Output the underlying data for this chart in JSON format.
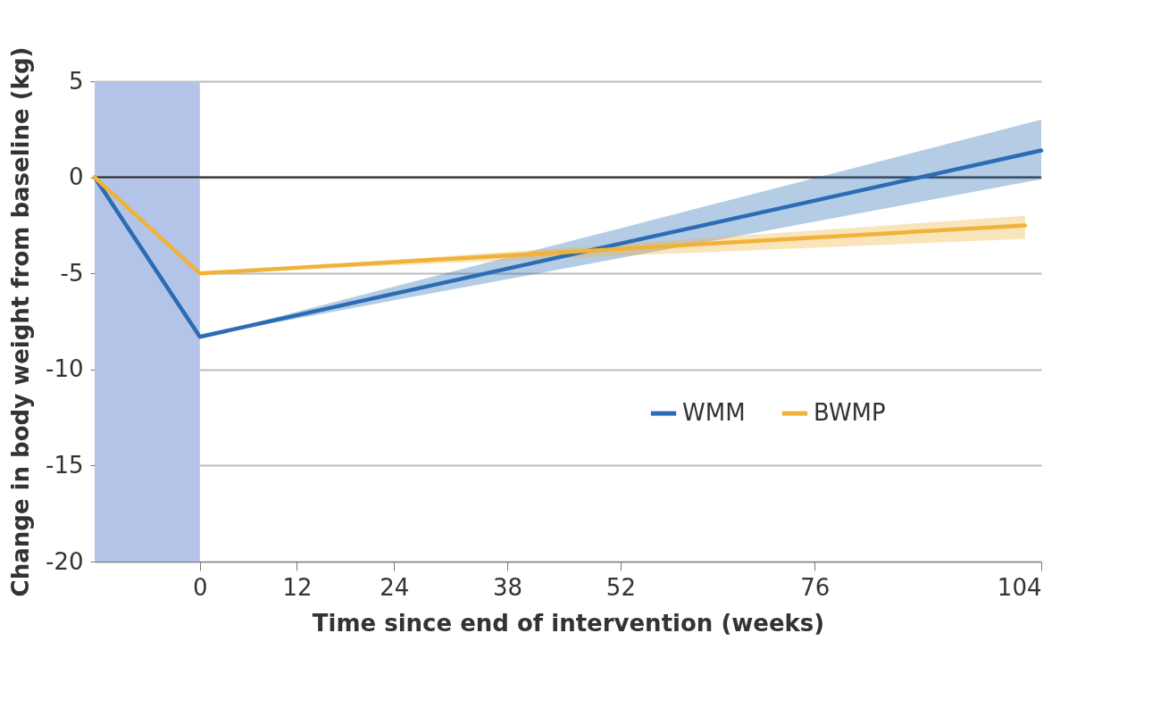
{
  "chart_data": {
    "type": "line",
    "xlabel": "Time since end of intervention (weeks)",
    "ylabel": "Change in body weight from baseline (kg)",
    "xlim": [
      -13,
      104
    ],
    "xticks": [
      0,
      12,
      24,
      38,
      52,
      76,
      104
    ],
    "ylim": [
      -20,
      5
    ],
    "yticks": [
      5,
      0,
      -5,
      -10,
      -15,
      -20
    ],
    "grid": "y",
    "legend": "bottom right",
    "line_style": "solid",
    "ref_lines": [
      {
        "axis": "y",
        "value": 0,
        "color": "#222222"
      }
    ],
    "bands": [
      {
        "axis": "x",
        "from": -13,
        "to": 0,
        "color": "#b4c3e8"
      }
    ],
    "series": [
      {
        "name": "WMM",
        "color": "#2b6cb4",
        "x": [
          -13,
          0,
          104
        ],
        "values": [
          0,
          -8.3,
          1.4
        ],
        "lower": [
          0,
          -8.3,
          -0.1
        ],
        "upper": [
          0,
          -8.3,
          3.0
        ]
      },
      {
        "name": "BWMP",
        "color": "#f0b23a",
        "x": [
          -13,
          0,
          102
        ],
        "values": [
          0,
          -5.0,
          -2.5
        ],
        "lower": [
          0,
          -5.0,
          -3.2
        ],
        "upper": [
          0,
          -5.0,
          -2.0
        ]
      }
    ]
  }
}
